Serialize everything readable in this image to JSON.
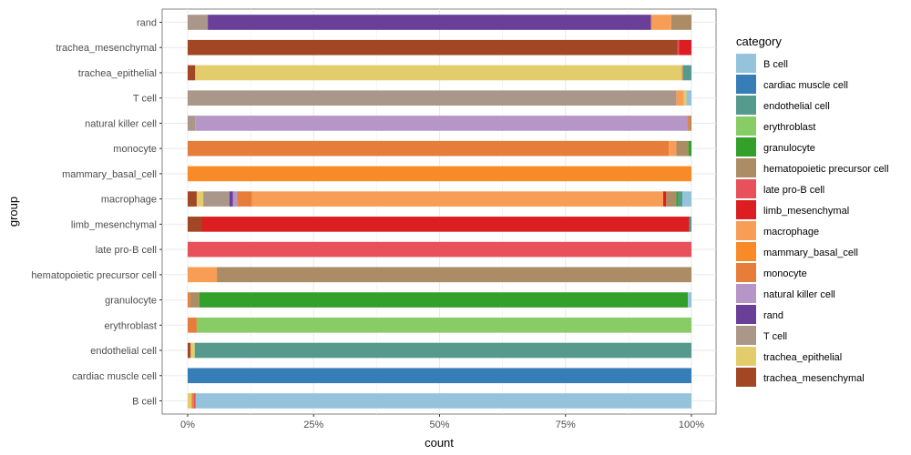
{
  "chart_data": {
    "type": "bar",
    "orientation": "horizontal",
    "stacked": true,
    "normalized": true,
    "xlabel": "count",
    "ylabel": "group",
    "xlim": [
      0,
      1
    ],
    "x_ticks": [
      {
        "value": 0,
        "label": "0%"
      },
      {
        "value": 0.25,
        "label": "25%"
      },
      {
        "value": 0.5,
        "label": "50%"
      },
      {
        "value": 0.75,
        "label": "75%"
      },
      {
        "value": 1,
        "label": "100%"
      }
    ],
    "legend_title": "category",
    "legend_position": "right",
    "categories_order": [
      "B cell",
      "cardiac muscle cell",
      "endothelial cell",
      "erythroblast",
      "granulocyte",
      "hematopoietic precursor cell",
      "late pro-B cell",
      "limb_mesenchymal",
      "macrophage",
      "mammary_basal_cell",
      "monocyte",
      "natural killer cell",
      "rand",
      "T cell",
      "trachea_epithelial",
      "trachea_mesenchymal"
    ],
    "colors": {
      "B cell": "#96c3dc",
      "cardiac muscle cell": "#377eb8",
      "endothelial cell": "#559a8d",
      "erythroblast": "#88cc66",
      "granulocyte": "#33a02c",
      "hematopoietic precursor cell": "#ab8c64",
      "late pro-B cell": "#e8515a",
      "limb_mesenchymal": "#dc1e22",
      "macrophage": "#f79d56",
      "mammary_basal_cell": "#f98a28",
      "monocyte": "#e67d3b",
      "natural killer cell": "#b596c7",
      "rand": "#6a3f98",
      "T cell": "#ab978a",
      "trachea_epithelial": "#e3cc6b",
      "trachea_mesenchymal": "#a24623"
    },
    "groups": [
      {
        "name": "rand",
        "segments": [
          {
            "category": "T cell",
            "value": 0.04
          },
          {
            "category": "rand",
            "value": 0.88
          },
          {
            "category": "macrophage",
            "value": 0.04
          },
          {
            "category": "hematopoietic precursor cell",
            "value": 0.04
          }
        ]
      },
      {
        "name": "trachea_mesenchymal",
        "segments": [
          {
            "category": "trachea_mesenchymal",
            "value": 0.972
          },
          {
            "category": "late pro-B cell",
            "value": 0.003
          },
          {
            "category": "limb_mesenchymal",
            "value": 0.025
          }
        ]
      },
      {
        "name": "trachea_epithelial",
        "segments": [
          {
            "category": "trachea_mesenchymal",
            "value": 0.015
          },
          {
            "category": "trachea_epithelial",
            "value": 0.965
          },
          {
            "category": "macrophage",
            "value": 0.003
          },
          {
            "category": "endothelial cell",
            "value": 0.017
          }
        ]
      },
      {
        "name": "T cell",
        "segments": [
          {
            "category": "T cell",
            "value": 0.97
          },
          {
            "category": "macrophage",
            "value": 0.015
          },
          {
            "category": "trachea_epithelial",
            "value": 0.005
          },
          {
            "category": "B cell",
            "value": 0.01
          }
        ]
      },
      {
        "name": "natural killer cell",
        "segments": [
          {
            "category": "T cell",
            "value": 0.015
          },
          {
            "category": "natural killer cell",
            "value": 0.977
          },
          {
            "category": "monocyte",
            "value": 0.004
          },
          {
            "category": "hematopoietic precursor cell",
            "value": 0.004
          }
        ]
      },
      {
        "name": "monocyte",
        "segments": [
          {
            "category": "monocyte",
            "value": 0.955
          },
          {
            "category": "macrophage",
            "value": 0.015
          },
          {
            "category": "hematopoietic precursor cell",
            "value": 0.024
          },
          {
            "category": "granulocyte",
            "value": 0.006
          }
        ]
      },
      {
        "name": "mammary_basal_cell",
        "segments": [
          {
            "category": "mammary_basal_cell",
            "value": 1.0
          }
        ]
      },
      {
        "name": "macrophage",
        "segments": [
          {
            "category": "trachea_mesenchymal",
            "value": 0.018
          },
          {
            "category": "trachea_epithelial",
            "value": 0.013
          },
          {
            "category": "T cell",
            "value": 0.052
          },
          {
            "category": "rand",
            "value": 0.007
          },
          {
            "category": "natural killer cell",
            "value": 0.008
          },
          {
            "category": "monocyte",
            "value": 0.03
          },
          {
            "category": "macrophage",
            "value": 0.816
          },
          {
            "category": "limb_mesenchymal",
            "value": 0.006
          },
          {
            "category": "hematopoietic precursor cell",
            "value": 0.02
          },
          {
            "category": "granulocyte",
            "value": 0.004
          },
          {
            "category": "endothelial cell",
            "value": 0.008
          },
          {
            "category": "B cell",
            "value": 0.018
          }
        ]
      },
      {
        "name": "limb_mesenchymal",
        "segments": [
          {
            "category": "trachea_mesenchymal",
            "value": 0.028
          },
          {
            "category": "limb_mesenchymal",
            "value": 0.968
          },
          {
            "category": "endothelial cell",
            "value": 0.004
          }
        ]
      },
      {
        "name": "late pro-B cell",
        "segments": [
          {
            "category": "late pro-B cell",
            "value": 1.0
          }
        ]
      },
      {
        "name": "hematopoietic precursor cell",
        "segments": [
          {
            "category": "macrophage",
            "value": 0.058
          },
          {
            "category": "hematopoietic precursor cell",
            "value": 0.942
          }
        ]
      },
      {
        "name": "granulocyte",
        "segments": [
          {
            "category": "monocyte",
            "value": 0.005
          },
          {
            "category": "hematopoietic precursor cell",
            "value": 0.018
          },
          {
            "category": "granulocyte",
            "value": 0.97
          },
          {
            "category": "B cell",
            "value": 0.007
          }
        ]
      },
      {
        "name": "erythroblast",
        "segments": [
          {
            "category": "monocyte",
            "value": 0.018
          },
          {
            "category": "erythroblast",
            "value": 0.982
          }
        ]
      },
      {
        "name": "endothelial cell",
        "segments": [
          {
            "category": "trachea_mesenchymal",
            "value": 0.006
          },
          {
            "category": "trachea_epithelial",
            "value": 0.008
          },
          {
            "category": "endothelial cell",
            "value": 0.986
          }
        ]
      },
      {
        "name": "cardiac muscle cell",
        "segments": [
          {
            "category": "cardiac muscle cell",
            "value": 1.0
          }
        ]
      },
      {
        "name": "B cell",
        "segments": [
          {
            "category": "trachea_epithelial",
            "value": 0.008
          },
          {
            "category": "monocyte",
            "value": 0.004
          },
          {
            "category": "late pro-B cell",
            "value": 0.004
          },
          {
            "category": "B cell",
            "value": 0.984
          }
        ]
      }
    ]
  }
}
